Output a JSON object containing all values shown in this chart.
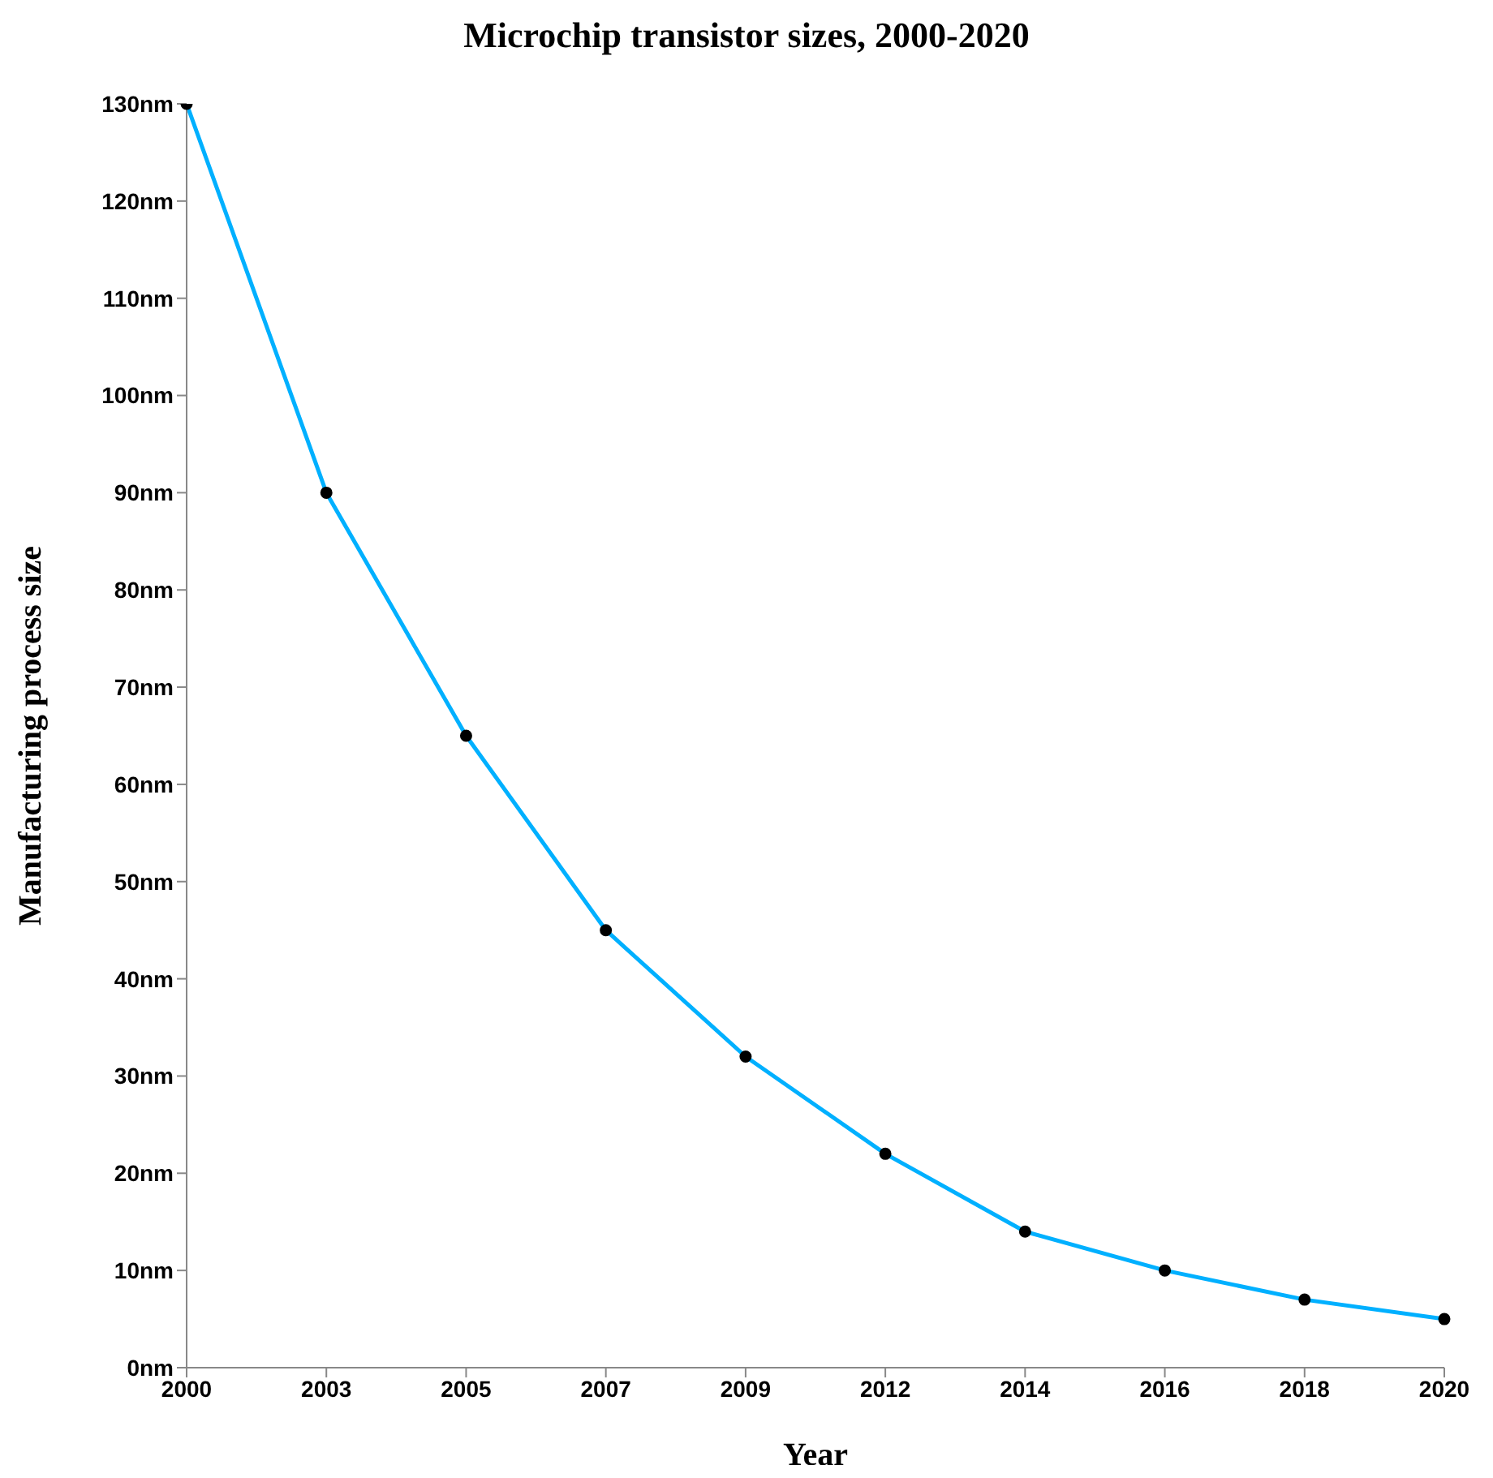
{
  "chart_data": {
    "type": "line",
    "title": "Microchip transistor sizes, 2000-2020",
    "xlabel": "Year",
    "ylabel": "Manufacturing process size",
    "categories": [
      "2000",
      "2003",
      "2005",
      "2007",
      "2009",
      "2012",
      "2014",
      "2016",
      "2018",
      "2020"
    ],
    "series": [
      {
        "color": "#00b0ff",
        "values": [
          130,
          90,
          65,
          45,
          32,
          22,
          14,
          10,
          7,
          5
        ]
      }
    ],
    "ylim": [
      0,
      130
    ],
    "yticks": [
      {
        "value": 0,
        "label": "0nm"
      },
      {
        "value": 10,
        "label": "10nm"
      },
      {
        "value": 20,
        "label": "20nm"
      },
      {
        "value": 30,
        "label": "30nm"
      },
      {
        "value": 40,
        "label": "40nm"
      },
      {
        "value": 50,
        "label": "50nm"
      },
      {
        "value": 60,
        "label": "60nm"
      },
      {
        "value": 70,
        "label": "70nm"
      },
      {
        "value": 80,
        "label": "80nm"
      },
      {
        "value": 90,
        "label": "90nm"
      },
      {
        "value": 100,
        "label": "100nm"
      },
      {
        "value": 110,
        "label": "110nm"
      },
      {
        "value": 120,
        "label": "120nm"
      },
      {
        "value": 130,
        "label": "130nm"
      }
    ],
    "grid": false,
    "legend": false,
    "marker": "circle",
    "line_style": "solid"
  }
}
